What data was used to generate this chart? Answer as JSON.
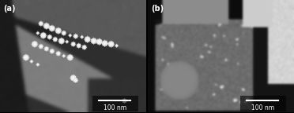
{
  "figsize": [
    3.72,
    1.44
  ],
  "dpi": 100,
  "label_a": "(a)",
  "label_b": "(b)",
  "scalebar_text": "100 nm",
  "background_color": "#808080",
  "label_color": "white",
  "scalebar_color": "white",
  "scalebar_line_color": "white",
  "label_fontsize": 7,
  "scalebar_fontsize": 5.5,
  "border_color": "white",
  "border_linewidth": 0.5
}
